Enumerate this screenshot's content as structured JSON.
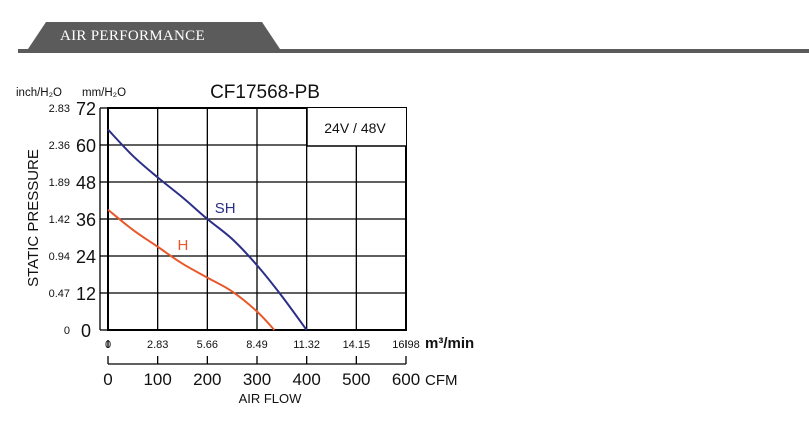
{
  "section": {
    "title": "AIR PERFORMANCE"
  },
  "chart_data": {
    "type": "line",
    "title": "CF17568-PB",
    "annotation": "24V / 48V",
    "ylabel": "STATIC PRESSURE",
    "xlabel": "AIR FLOW",
    "y_unit_inch": "inch/H₂O",
    "y_unit_mm": "mm/H₂O",
    "x_unit_m3": "m³/min",
    "x_unit_cfm": "CFM",
    "ylim": [
      0,
      72
    ],
    "xlim_cfm": [
      0,
      600
    ],
    "yticks_mm": [
      "0",
      "12",
      "24",
      "36",
      "48",
      "60",
      "72"
    ],
    "yticks_inch": [
      "0",
      "0.47",
      "0.94",
      "1.42",
      "1.89",
      "2.36",
      "2.83"
    ],
    "xticks_m3": [
      "0",
      "2.83",
      "5.66",
      "8.49",
      "11.32",
      "14.15",
      "16.98"
    ],
    "xticks_cfm": [
      "0",
      "100",
      "200",
      "300",
      "400",
      "500",
      "600"
    ],
    "grid": true,
    "series": [
      {
        "name": "SH",
        "color": "#2b2f86",
        "x": [
          0,
          50,
          100,
          150,
          200,
          250,
          300,
          350,
          400
        ],
        "y": [
          65,
          56.5,
          49.5,
          43,
          36,
          29.5,
          21,
          11,
          0
        ]
      },
      {
        "name": "H",
        "color": "#e8582a",
        "x": [
          0,
          50,
          100,
          150,
          200,
          250,
          300,
          335
        ],
        "y": [
          39,
          32.5,
          27,
          21.5,
          17,
          12.5,
          6,
          0
        ]
      }
    ]
  }
}
